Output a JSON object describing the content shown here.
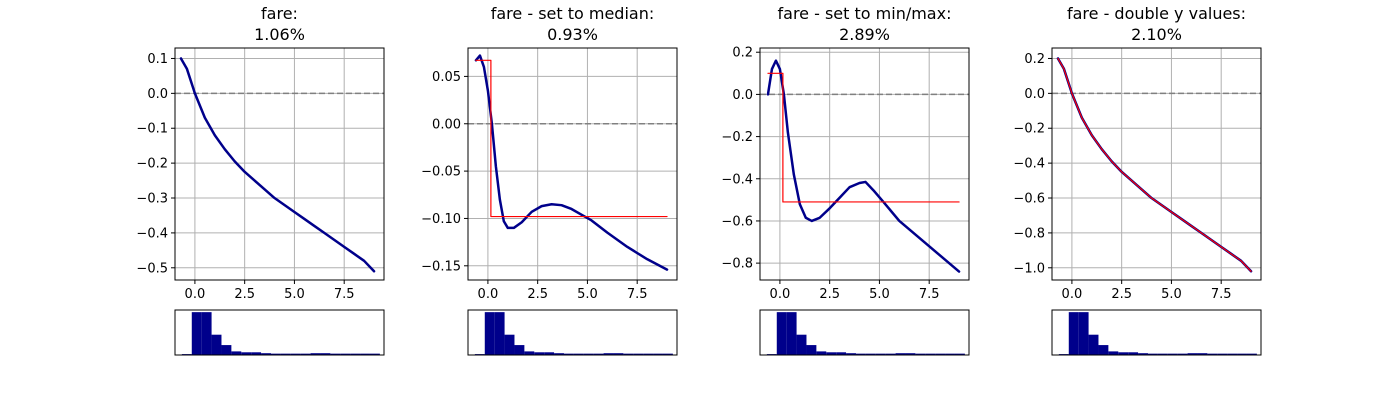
{
  "chart_data": [
    {
      "type": "line",
      "title": "fare:",
      "subtitle": "1.06%",
      "xlim": [
        -1.0,
        9.5
      ],
      "ylim": [
        -0.535,
        0.13
      ],
      "xticks": [
        0.0,
        2.5,
        5.0,
        7.5
      ],
      "xtick_labels": [
        "0.0",
        "2.5",
        "5.0",
        "7.5"
      ],
      "yticks": [
        0.1,
        0.0,
        -0.1,
        -0.2,
        -0.3,
        -0.4,
        -0.5
      ],
      "ytick_labels": [
        "0.1",
        "0.0",
        "−0.1",
        "−0.2",
        "−0.3",
        "−0.4",
        "−0.5"
      ],
      "grid": true,
      "zero_line": 0,
      "series": [
        {
          "style": "main",
          "points": [
            [
              -0.7,
              0.1
            ],
            [
              -0.4,
              0.07
            ],
            [
              0.0,
              0.0
            ],
            [
              0.5,
              -0.07
            ],
            [
              1.0,
              -0.12
            ],
            [
              1.5,
              -0.16
            ],
            [
              2.0,
              -0.195
            ],
            [
              2.5,
              -0.225
            ],
            [
              3.0,
              -0.25
            ],
            [
              3.5,
              -0.275
            ],
            [
              4.0,
              -0.3
            ],
            [
              4.5,
              -0.32
            ],
            [
              5.0,
              -0.34
            ],
            [
              5.5,
              -0.36
            ],
            [
              6.0,
              -0.38
            ],
            [
              6.5,
              -0.4
            ],
            [
              7.0,
              -0.42
            ],
            [
              7.5,
              -0.44
            ],
            [
              8.0,
              -0.46
            ],
            [
              8.5,
              -0.48
            ],
            [
              9.0,
              -0.51
            ]
          ]
        }
      ],
      "histogram": {
        "bins": [
          -0.35,
          0.01,
          0.37,
          0.73,
          1.09,
          1.45,
          1.81,
          2.17,
          2.53,
          2.89,
          3.25,
          3.61,
          3.97,
          4.33,
          4.69,
          5.05,
          5.41,
          5.77,
          6.13,
          6.49,
          6.85
        ],
        "counts": [
          2,
          95,
          95,
          45,
          22,
          8,
          6,
          6,
          4,
          3,
          3,
          3,
          3,
          4,
          4,
          3,
          3,
          3,
          3,
          3
        ],
        "xlim": [
          -0.6,
          7.0
        ]
      }
    },
    {
      "type": "line",
      "title": "fare - set to median:",
      "subtitle": "0.93%",
      "xlim": [
        -1.0,
        9.5
      ],
      "ylim": [
        -0.165,
        0.08
      ],
      "xticks": [
        0.0,
        2.5,
        5.0,
        7.5
      ],
      "xtick_labels": [
        "0.0",
        "2.5",
        "5.0",
        "7.5"
      ],
      "yticks": [
        0.05,
        0.0,
        -0.05,
        -0.1,
        -0.15
      ],
      "ytick_labels": [
        "0.05",
        "0.00",
        "−0.05",
        "−0.10",
        "−0.15"
      ],
      "grid": true,
      "zero_line": 0,
      "series": [
        {
          "style": "main",
          "points": [
            [
              -0.6,
              0.067
            ],
            [
              -0.4,
              0.072
            ],
            [
              -0.2,
              0.06
            ],
            [
              0.0,
              0.035
            ],
            [
              0.2,
              0.0
            ],
            [
              0.4,
              -0.045
            ],
            [
              0.6,
              -0.08
            ],
            [
              0.8,
              -0.103
            ],
            [
              1.0,
              -0.11
            ],
            [
              1.3,
              -0.11
            ],
            [
              1.7,
              -0.104
            ],
            [
              2.2,
              -0.093
            ],
            [
              2.7,
              -0.087
            ],
            [
              3.2,
              -0.085
            ],
            [
              3.7,
              -0.086
            ],
            [
              4.2,
              -0.09
            ],
            [
              4.7,
              -0.096
            ],
            [
              5.2,
              -0.102
            ],
            [
              6.0,
              -0.115
            ],
            [
              7.0,
              -0.13
            ],
            [
              8.0,
              -0.143
            ],
            [
              9.0,
              -0.154
            ]
          ]
        },
        {
          "style": "reference",
          "points": [
            [
              -0.6,
              0.067
            ],
            [
              0.15,
              0.067
            ],
            [
              0.15,
              -0.098
            ],
            [
              9.0,
              -0.098
            ]
          ]
        }
      ],
      "histogram": {
        "bins": [
          -0.35,
          0.01,
          0.37,
          0.73,
          1.09,
          1.45,
          1.81,
          2.17,
          2.53,
          2.89,
          3.25,
          3.61,
          3.97,
          4.33,
          4.69,
          5.05,
          5.41,
          5.77,
          6.13,
          6.49,
          6.85
        ],
        "counts": [
          2,
          95,
          95,
          45,
          22,
          8,
          6,
          6,
          4,
          3,
          3,
          3,
          3,
          4,
          4,
          3,
          3,
          3,
          3,
          3
        ],
        "xlim": [
          -0.6,
          7.0
        ]
      }
    },
    {
      "type": "line",
      "title": "fare - set to min/max:",
      "subtitle": "2.89%",
      "xlim": [
        -1.0,
        9.5
      ],
      "ylim": [
        -0.88,
        0.22
      ],
      "xticks": [
        0.0,
        2.5,
        5.0,
        7.5
      ],
      "xtick_labels": [
        "0.0",
        "2.5",
        "5.0",
        "7.5"
      ],
      "yticks": [
        0.2,
        0.0,
        -0.2,
        -0.4,
        -0.6,
        -0.8
      ],
      "ytick_labels": [
        "0.2",
        "0.0",
        "−0.2",
        "−0.4",
        "−0.6",
        "−0.8"
      ],
      "grid": true,
      "zero_line": 0,
      "series": [
        {
          "style": "main",
          "points": [
            [
              -0.6,
              0.0
            ],
            [
              -0.4,
              0.12
            ],
            [
              -0.2,
              0.16
            ],
            [
              0.0,
              0.12
            ],
            [
              0.2,
              0.0
            ],
            [
              0.4,
              -0.18
            ],
            [
              0.7,
              -0.38
            ],
            [
              1.0,
              -0.52
            ],
            [
              1.3,
              -0.585
            ],
            [
              1.6,
              -0.6
            ],
            [
              2.0,
              -0.585
            ],
            [
              2.5,
              -0.54
            ],
            [
              3.0,
              -0.49
            ],
            [
              3.5,
              -0.44
            ],
            [
              4.0,
              -0.42
            ],
            [
              4.3,
              -0.415
            ],
            [
              4.7,
              -0.455
            ],
            [
              5.2,
              -0.51
            ],
            [
              6.0,
              -0.6
            ],
            [
              7.0,
              -0.68
            ],
            [
              8.0,
              -0.76
            ],
            [
              9.0,
              -0.84
            ]
          ]
        },
        {
          "style": "reference",
          "points": [
            [
              -0.6,
              0.1
            ],
            [
              0.15,
              0.1
            ],
            [
              0.15,
              -0.51
            ],
            [
              9.0,
              -0.51
            ]
          ]
        }
      ],
      "histogram": {
        "bins": [
          -0.35,
          0.01,
          0.37,
          0.73,
          1.09,
          1.45,
          1.81,
          2.17,
          2.53,
          2.89,
          3.25,
          3.61,
          3.97,
          4.33,
          4.69,
          5.05,
          5.41,
          5.77,
          6.13,
          6.49,
          6.85
        ],
        "counts": [
          2,
          95,
          95,
          45,
          22,
          8,
          6,
          6,
          4,
          3,
          3,
          3,
          3,
          4,
          4,
          3,
          3,
          3,
          3,
          3
        ],
        "xlim": [
          -0.6,
          7.0
        ]
      }
    },
    {
      "type": "line",
      "title": "fare - double y values:",
      "subtitle": "2.10%",
      "xlim": [
        -1.0,
        9.5
      ],
      "ylim": [
        -1.07,
        0.26
      ],
      "xticks": [
        0.0,
        2.5,
        5.0,
        7.5
      ],
      "xtick_labels": [
        "0.0",
        "2.5",
        "5.0",
        "7.5"
      ],
      "yticks": [
        0.2,
        0.0,
        -0.2,
        -0.4,
        -0.6,
        -0.8,
        -1.0
      ],
      "ytick_labels": [
        "0.2",
        "0.0",
        "−0.2",
        "−0.4",
        "−0.6",
        "−0.8",
        "−1.0"
      ],
      "grid": true,
      "zero_line": 0,
      "series": [
        {
          "style": "main",
          "points": [
            [
              -0.7,
              0.2
            ],
            [
              -0.4,
              0.14
            ],
            [
              0.0,
              0.0
            ],
            [
              0.5,
              -0.14
            ],
            [
              1.0,
              -0.24
            ],
            [
              1.5,
              -0.32
            ],
            [
              2.0,
              -0.39
            ],
            [
              2.5,
              -0.45
            ],
            [
              3.0,
              -0.5
            ],
            [
              3.5,
              -0.55
            ],
            [
              4.0,
              -0.6
            ],
            [
              4.5,
              -0.64
            ],
            [
              5.0,
              -0.68
            ],
            [
              5.5,
              -0.72
            ],
            [
              6.0,
              -0.76
            ],
            [
              6.5,
              -0.8
            ],
            [
              7.0,
              -0.84
            ],
            [
              7.5,
              -0.88
            ],
            [
              8.0,
              -0.92
            ],
            [
              8.5,
              -0.96
            ],
            [
              9.0,
              -1.02
            ]
          ]
        },
        {
          "style": "reference",
          "points": [
            [
              -0.7,
              0.2
            ],
            [
              -0.4,
              0.14
            ],
            [
              0.0,
              0.0
            ],
            [
              0.5,
              -0.14
            ],
            [
              1.0,
              -0.24
            ],
            [
              1.5,
              -0.32
            ],
            [
              2.0,
              -0.39
            ],
            [
              2.5,
              -0.45
            ],
            [
              3.0,
              -0.5
            ],
            [
              3.5,
              -0.55
            ],
            [
              4.0,
              -0.6
            ],
            [
              4.5,
              -0.64
            ],
            [
              5.0,
              -0.68
            ],
            [
              5.5,
              -0.72
            ],
            [
              6.0,
              -0.76
            ],
            [
              6.5,
              -0.8
            ],
            [
              7.0,
              -0.84
            ],
            [
              7.5,
              -0.88
            ],
            [
              8.0,
              -0.92
            ],
            [
              8.5,
              -0.96
            ],
            [
              9.0,
              -1.02
            ]
          ]
        }
      ],
      "histogram": {
        "bins": [
          -0.35,
          0.01,
          0.37,
          0.73,
          1.09,
          1.45,
          1.81,
          2.17,
          2.53,
          2.89,
          3.25,
          3.61,
          3.97,
          4.33,
          4.69,
          5.05,
          5.41,
          5.77,
          6.13,
          6.49,
          6.85
        ],
        "counts": [
          2,
          95,
          95,
          45,
          22,
          8,
          6,
          6,
          4,
          3,
          3,
          3,
          3,
          4,
          4,
          3,
          3,
          3,
          3,
          3
        ],
        "xlim": [
          -0.6,
          7.0
        ]
      }
    }
  ],
  "colors": {
    "main_line": "#00008b",
    "reference_line": "#ff0000",
    "zero_line": "#808080",
    "grid": "#b0b0b0",
    "histogram": "#00008b",
    "axes": "#000000"
  }
}
